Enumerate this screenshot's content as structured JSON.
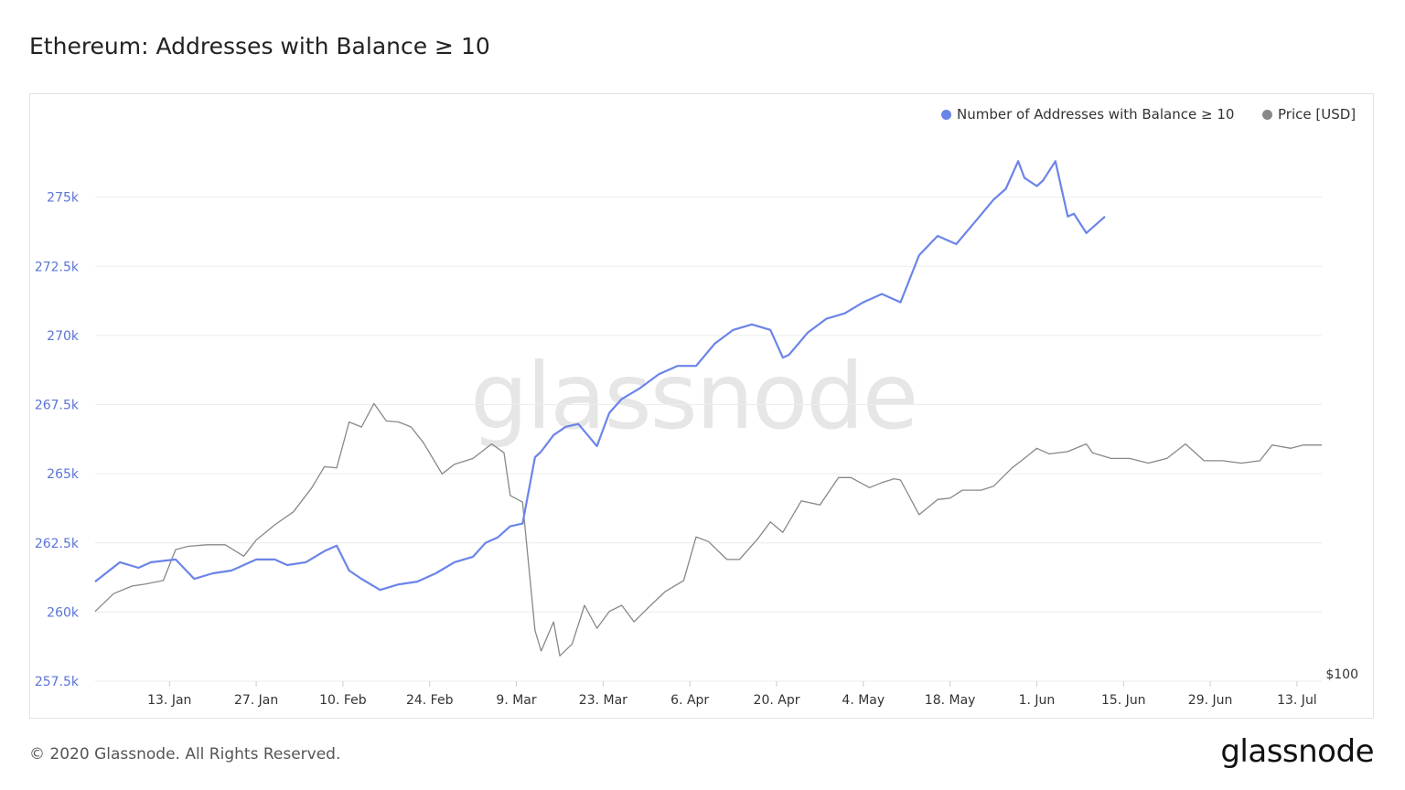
{
  "header": {
    "title": "Ethereum: Addresses with Balance ≥ 10"
  },
  "watermark": "glassnode",
  "footer": {
    "copyright": "© 2020 Glassnode. All Rights Reserved.",
    "brand": "glassnode"
  },
  "colors": {
    "addresses": "#6b84e8",
    "price": "#888888",
    "grid": "#ececec",
    "axis_text_left": "#5b74d6"
  },
  "chart_data": {
    "type": "line",
    "title": "Ethereum: Addresses with Balance ≥ 10",
    "legend": [
      {
        "name": "Number of Addresses with Balance ≥ 10",
        "color": "#6b84e8"
      },
      {
        "name": "Price [USD]",
        "color": "#888888"
      }
    ],
    "legend_position": "top-right",
    "grid": true,
    "xlim": [
      "2020-01-01",
      "2020-07-17"
    ],
    "x_ticks": [
      "13. Jan",
      "27. Jan",
      "10. Feb",
      "24. Feb",
      "9. Mar",
      "23. Mar",
      "6. Apr",
      "20. Apr",
      "4. May",
      "18. May",
      "1. Jun",
      "15. Jun",
      "29. Jun",
      "13. Jul"
    ],
    "x_tick_dates": [
      "2020-01-13",
      "2020-01-27",
      "2020-02-10",
      "2020-02-24",
      "2020-03-09",
      "2020-03-23",
      "2020-04-06",
      "2020-04-20",
      "2020-05-04",
      "2020-05-18",
      "2020-06-01",
      "2020-06-15",
      "2020-06-29",
      "2020-07-13"
    ],
    "y_left": {
      "ylim": [
        257500,
        277500
      ],
      "ticks": [
        257500,
        260000,
        262500,
        265000,
        267500,
        270000,
        272500,
        275000
      ],
      "tick_labels": [
        "257.5k",
        "260k",
        "262.5k",
        "265k",
        "267.5k",
        "270k",
        "272.5k",
        "275k"
      ]
    },
    "y_right": {
      "scale": "log",
      "tick_labels": [
        "$100"
      ]
    },
    "series": [
      {
        "name": "Number of Addresses with Balance ≥ 10",
        "axis": "left",
        "x": [
          "2020-01-01",
          "2020-01-05",
          "2020-01-08",
          "2020-01-10",
          "2020-01-14",
          "2020-01-17",
          "2020-01-20",
          "2020-01-23",
          "2020-01-27",
          "2020-01-30",
          "2020-02-01",
          "2020-02-04",
          "2020-02-07",
          "2020-02-09",
          "2020-02-11",
          "2020-02-13",
          "2020-02-16",
          "2020-02-19",
          "2020-02-22",
          "2020-02-25",
          "2020-02-28",
          "2020-03-02",
          "2020-03-04",
          "2020-03-06",
          "2020-03-08",
          "2020-03-10",
          "2020-03-12",
          "2020-03-13",
          "2020-03-15",
          "2020-03-17",
          "2020-03-19",
          "2020-03-22",
          "2020-03-24",
          "2020-03-26",
          "2020-03-29",
          "2020-04-01",
          "2020-04-04",
          "2020-04-07",
          "2020-04-10",
          "2020-04-13",
          "2020-04-16",
          "2020-04-19",
          "2020-04-21",
          "2020-04-22",
          "2020-04-25",
          "2020-04-28",
          "2020-05-01",
          "2020-05-04",
          "2020-05-07",
          "2020-05-10",
          "2020-05-13",
          "2020-05-16",
          "2020-05-19",
          "2020-05-22",
          "2020-05-25",
          "2020-05-27",
          "2020-05-29",
          "2020-05-30",
          "2020-06-01",
          "2020-06-02",
          "2020-06-04",
          "2020-06-06",
          "2020-06-07",
          "2020-06-09",
          "2020-06-12"
        ],
        "values": [
          261100,
          261800,
          261600,
          261800,
          261900,
          261200,
          261400,
          261500,
          261900,
          261900,
          261700,
          261800,
          262200,
          262400,
          261500,
          261200,
          260800,
          261000,
          261100,
          261400,
          261800,
          262000,
          262500,
          262700,
          263100,
          263200,
          265600,
          265800,
          266400,
          266700,
          266800,
          266000,
          267200,
          267700,
          268100,
          268600,
          268900,
          268900,
          269700,
          270200,
          270400,
          270200,
          269200,
          269300,
          270100,
          270600,
          270800,
          271200,
          271500,
          271200,
          272900,
          273600,
          273300,
          274100,
          274900,
          275300,
          276300,
          275700,
          275400,
          275600,
          276300,
          274300,
          274400,
          273700,
          274300
        ]
      },
      {
        "name": "Price [USD]",
        "axis": "right",
        "x": [
          "2020-01-01",
          "2020-01-04",
          "2020-01-07",
          "2020-01-09",
          "2020-01-12",
          "2020-01-14",
          "2020-01-16",
          "2020-01-19",
          "2020-01-22",
          "2020-01-25",
          "2020-01-27",
          "2020-01-30",
          "2020-02-02",
          "2020-02-05",
          "2020-02-07",
          "2020-02-09",
          "2020-02-11",
          "2020-02-13",
          "2020-02-15",
          "2020-02-17",
          "2020-02-19",
          "2020-02-21",
          "2020-02-23",
          "2020-02-26",
          "2020-02-28",
          "2020-03-02",
          "2020-03-05",
          "2020-03-07",
          "2020-03-08",
          "2020-03-10",
          "2020-03-12",
          "2020-03-13",
          "2020-03-15",
          "2020-03-16",
          "2020-03-18",
          "2020-03-20",
          "2020-03-22",
          "2020-03-24",
          "2020-03-26",
          "2020-03-28",
          "2020-03-30",
          "2020-04-02",
          "2020-04-05",
          "2020-04-07",
          "2020-04-09",
          "2020-04-12",
          "2020-04-14",
          "2020-04-17",
          "2020-04-19",
          "2020-04-21",
          "2020-04-24",
          "2020-04-27",
          "2020-04-30",
          "2020-05-02",
          "2020-05-05",
          "2020-05-07",
          "2020-05-09",
          "2020-05-10",
          "2020-05-13",
          "2020-05-16",
          "2020-05-18",
          "2020-05-20",
          "2020-05-23",
          "2020-05-25",
          "2020-05-28",
          "2020-05-30",
          "2020-06-01",
          "2020-06-03",
          "2020-06-06",
          "2020-06-09",
          "2020-06-10",
          "2020-06-13",
          "2020-06-16",
          "2020-06-19",
          "2020-06-22",
          "2020-06-25",
          "2020-06-28",
          "2020-07-01",
          "2020-07-04",
          "2020-07-07",
          "2020-07-09",
          "2020-07-12",
          "2020-07-14",
          "2020-07-17"
        ],
        "values": [
          130,
          139,
          143,
          144,
          146,
          164,
          166,
          167,
          167,
          160,
          170,
          180,
          189,
          207,
          224,
          223,
          265,
          260,
          284,
          266,
          265,
          260,
          245,
          218,
          226,
          231,
          244,
          236,
          201,
          196,
          121,
          112,
          125,
          110,
          115,
          133,
          122,
          130,
          133,
          125,
          131,
          140,
          146,
          172,
          169,
          158,
          158,
          171,
          182,
          175,
          197,
          194,
          215,
          215,
          207,
          211,
          214,
          213,
          187,
          198,
          199,
          205,
          205,
          208,
          223,
          231,
          240,
          235,
          237,
          244,
          236,
          231,
          231,
          227,
          231,
          244,
          229,
          229,
          227,
          229,
          243,
          240,
          243,
          243
        ]
      }
    ]
  }
}
